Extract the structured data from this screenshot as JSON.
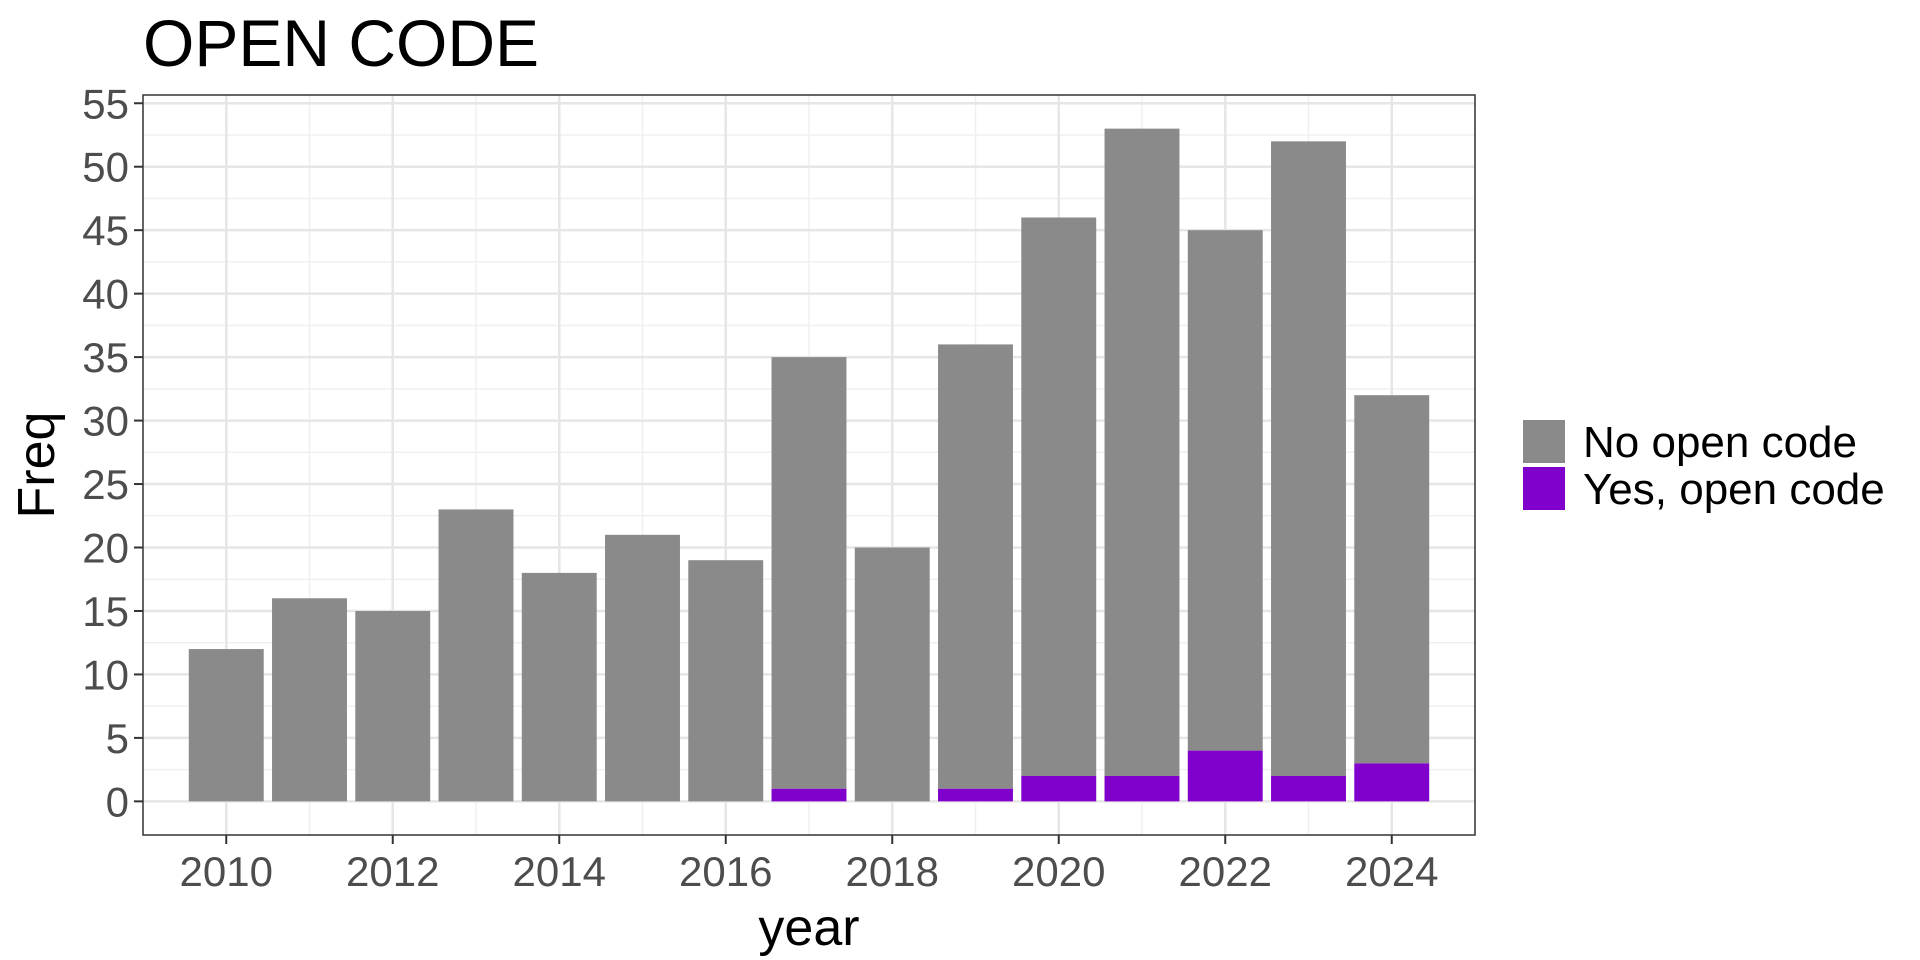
{
  "chart_data": {
    "type": "bar",
    "stacked": true,
    "title": "OPEN CODE",
    "xlabel": "year",
    "ylabel": "Freq",
    "x": [
      2010,
      2011,
      2012,
      2013,
      2014,
      2015,
      2016,
      2017,
      2018,
      2019,
      2020,
      2021,
      2022,
      2023,
      2024
    ],
    "x_ticks": [
      "2010",
      "2012",
      "2014",
      "2016",
      "2018",
      "2020",
      "2022",
      "2024"
    ],
    "y_ticks": [
      "0",
      "5",
      "10",
      "15",
      "20",
      "25",
      "30",
      "35",
      "40",
      "45",
      "50",
      "55"
    ],
    "xlim": [
      2009,
      2025
    ],
    "ylim": [
      -2.65,
      55.65
    ],
    "grid": true,
    "legend_position": "right",
    "series": [
      {
        "name": "No open code",
        "color": "#8a8a8a",
        "values": [
          12,
          16,
          15,
          23,
          18,
          21,
          19,
          34,
          20,
          35,
          44,
          51,
          41,
          50,
          29
        ]
      },
      {
        "name": "Yes, open code",
        "color": "#8000cc",
        "values": [
          0,
          0,
          0,
          0,
          0,
          0,
          0,
          1,
          0,
          1,
          2,
          2,
          4,
          2,
          3
        ]
      }
    ]
  }
}
